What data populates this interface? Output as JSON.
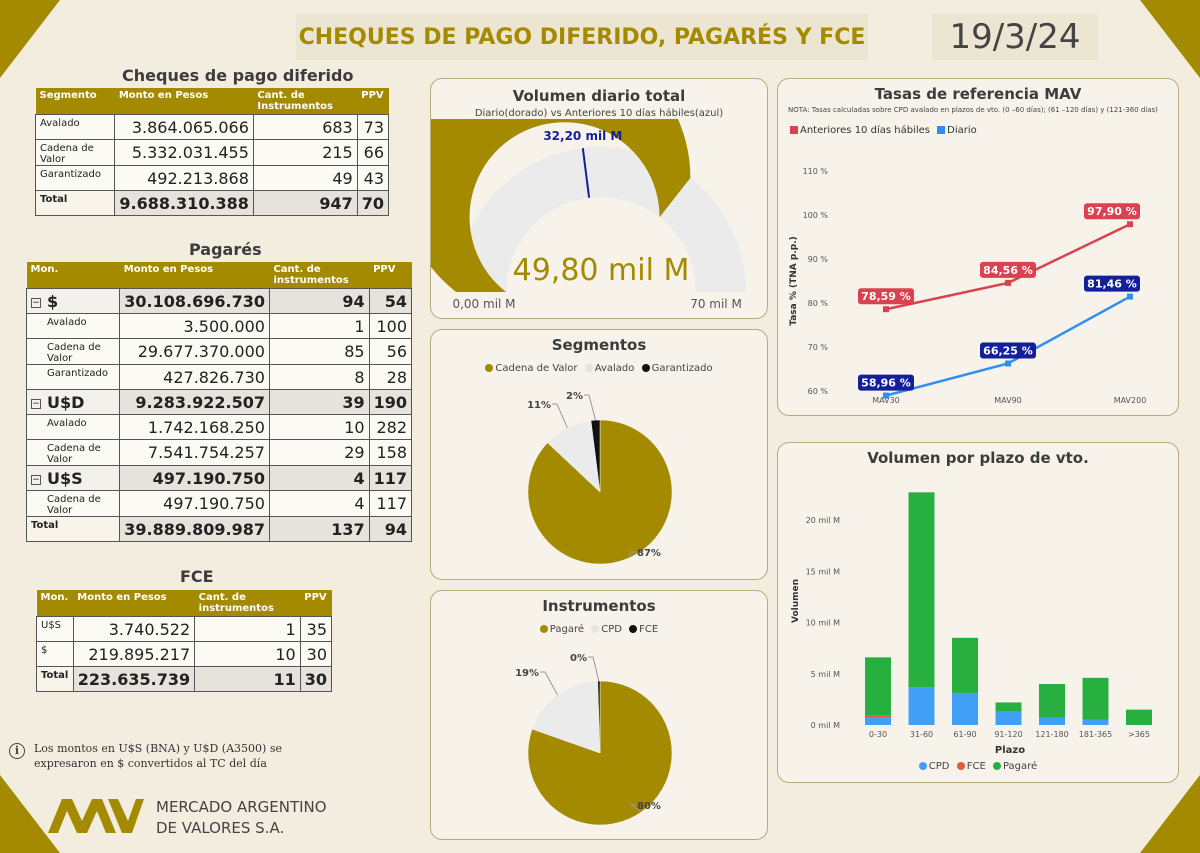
{
  "header": {
    "title": "CHEQUES DE PAGO DIFERIDO, PAGARÉS Y FCE",
    "date": "19/3/24"
  },
  "cpd": {
    "title": "Cheques de pago diferido",
    "headers": [
      "Segmento",
      "Monto en Pesos",
      "Cant. de Instrumentos",
      "PPV"
    ],
    "rows": [
      {
        "label": "Avalado",
        "monto": "3.864.065.066",
        "cant": "683",
        "ppv": "73"
      },
      {
        "label": "Cadena de Valor",
        "monto": "5.332.031.455",
        "cant": "215",
        "ppv": "66"
      },
      {
        "label": "Garantizado",
        "monto": "492.213.868",
        "cant": "49",
        "ppv": "43"
      }
    ],
    "total": {
      "label": "Total",
      "monto": "9.688.310.388",
      "cant": "947",
      "ppv": "70"
    }
  },
  "pagares": {
    "title": "Pagarés",
    "headers": [
      "Mon.",
      "Monto en Pesos",
      "Cant. de instrumentos",
      "PPV"
    ],
    "groups": [
      {
        "label": "$",
        "monto": "30.108.696.730",
        "cant": "94",
        "ppv": "54",
        "expand": "⊟",
        "rows": [
          {
            "label": "Avalado",
            "monto": "3.500.000",
            "cant": "1",
            "ppv": "100"
          },
          {
            "label": "Cadena de Valor",
            "monto": "29.677.370.000",
            "cant": "85",
            "ppv": "56"
          },
          {
            "label": "Garantizado",
            "monto": "427.826.730",
            "cant": "8",
            "ppv": "28"
          }
        ]
      },
      {
        "label": "U$D",
        "monto": "9.283.922.507",
        "cant": "39",
        "ppv": "190",
        "expand": "⊟",
        "rows": [
          {
            "label": "Avalado",
            "monto": "1.742.168.250",
            "cant": "10",
            "ppv": "282"
          },
          {
            "label": "Cadena de Valor",
            "monto": "7.541.754.257",
            "cant": "29",
            "ppv": "158"
          }
        ]
      },
      {
        "label": "U$S",
        "monto": "497.190.750",
        "cant": "4",
        "ppv": "117",
        "expand": "⊟",
        "rows": [
          {
            "label": "Cadena de Valor",
            "monto": "497.190.750",
            "cant": "4",
            "ppv": "117"
          }
        ]
      }
    ],
    "total": {
      "label": "Total",
      "monto": "39.889.809.987",
      "cant": "137",
      "ppv": "94"
    }
  },
  "fce": {
    "title": "FCE",
    "headers": [
      "Mon.",
      "Monto en Pesos",
      "Cant. de instrumentos",
      "PPV"
    ],
    "rows": [
      {
        "label": "U$S",
        "monto": "3.740.522",
        "cant": "1",
        "ppv": "35"
      },
      {
        "label": "$",
        "monto": "219.895.217",
        "cant": "10",
        "ppv": "30"
      }
    ],
    "total": {
      "label": "Total",
      "monto": "223.635.739",
      "cant": "11",
      "ppv": "30"
    }
  },
  "note": {
    "line1": "Los montos en U$S (BNA) y U$D (A3500) se",
    "line2": "expresaron en $ convertidos al TC del día"
  },
  "logo": {
    "line1": "MERCADO ARGENTINO",
    "line2": "DE VALORES S.A."
  },
  "colors": {
    "gold": "#a48a00",
    "red": "#d9424f",
    "blue": "#2f8ff0",
    "navy": "#14209a",
    "green": "#27b040",
    "lightgray": "#ebebeb"
  },
  "chart_data": [
    {
      "type": "gauge",
      "title": "Volumen diario total",
      "subtitle": "Diario(dorado) vs Anteriores 10 días hábiles(azul)",
      "value": 49.8,
      "value_label": "49,80 mil M",
      "target": 32.2,
      "target_label": "32,20 mil M",
      "min": 0,
      "max": 70,
      "min_label": "0,00 mil M",
      "max_label": "70 mil M"
    },
    {
      "type": "pie",
      "title": "Segmentos",
      "labels": [
        "Cadena de Valor",
        "Avalado",
        "Garantizado"
      ],
      "values": [
        87,
        11,
        2
      ],
      "value_labels": [
        "87%",
        "11%",
        "2%"
      ],
      "colors": [
        "#a48a00",
        "#ebebeb",
        "#111111"
      ]
    },
    {
      "type": "pie",
      "title": "Instrumentos",
      "labels": [
        "Pagaré",
        "CPD",
        "FCE"
      ],
      "values": [
        80,
        19,
        0.5
      ],
      "value_labels": [
        "80%",
        "19%",
        "0%"
      ],
      "colors": [
        "#a48a00",
        "#ebebeb",
        "#111111"
      ]
    },
    {
      "type": "line",
      "title": "Tasas de referencia MAV",
      "note": "NOTA: Tasas calculadas sobre CPD avalado en plazos de vto. (0 –60 días); (61 –120 días) y (121-360 días)",
      "categories": [
        "MAV30",
        "MAV90",
        "MAV200"
      ],
      "ylabel": "Tasa % (TNA p.p.)",
      "yticks": [
        "60 %",
        "70 %",
        "80 %",
        "90 %",
        "100 %",
        "110 %"
      ],
      "ylim": [
        60,
        110
      ],
      "series": [
        {
          "name": "Anteriores 10 días hábiles",
          "values": [
            78.59,
            84.56,
            97.9
          ],
          "labels": [
            "78,59 %",
            "84,56 %",
            "97,90 %"
          ],
          "color": "#d9424f"
        },
        {
          "name": "Diario",
          "values": [
            58.96,
            66.25,
            81.46
          ],
          "labels": [
            "58,96 %",
            "66,25 %",
            "81,46 %"
          ],
          "color": "#2f8ff0"
        }
      ]
    },
    {
      "type": "bar",
      "stacked": true,
      "title": "Volumen por plazo de vto.",
      "categories": [
        "0-30",
        "31-60",
        "61-90",
        "91-120",
        "121-180",
        "181-365",
        ">365"
      ],
      "xlabel": "Plazo",
      "ylabel": "Volumen",
      "yticks": [
        "0 mil M",
        "5 mil M",
        "10 mil M",
        "15 mil M",
        "20 mil M"
      ],
      "ylim": [
        0,
        24
      ],
      "series": [
        {
          "name": "CPD",
          "values": [
            0.7,
            3.7,
            3.1,
            1.3,
            0.7,
            0.5,
            0.0
          ],
          "color": "#41a0f5"
        },
        {
          "name": "FCE",
          "values": [
            0.2,
            0.0,
            0.0,
            0.0,
            0.0,
            0.0,
            0.0
          ],
          "color": "#e55a3c"
        },
        {
          "name": "Pagaré",
          "values": [
            5.7,
            19.0,
            5.4,
            0.9,
            3.3,
            4.1,
            1.5
          ],
          "color": "#27b040"
        }
      ]
    }
  ]
}
